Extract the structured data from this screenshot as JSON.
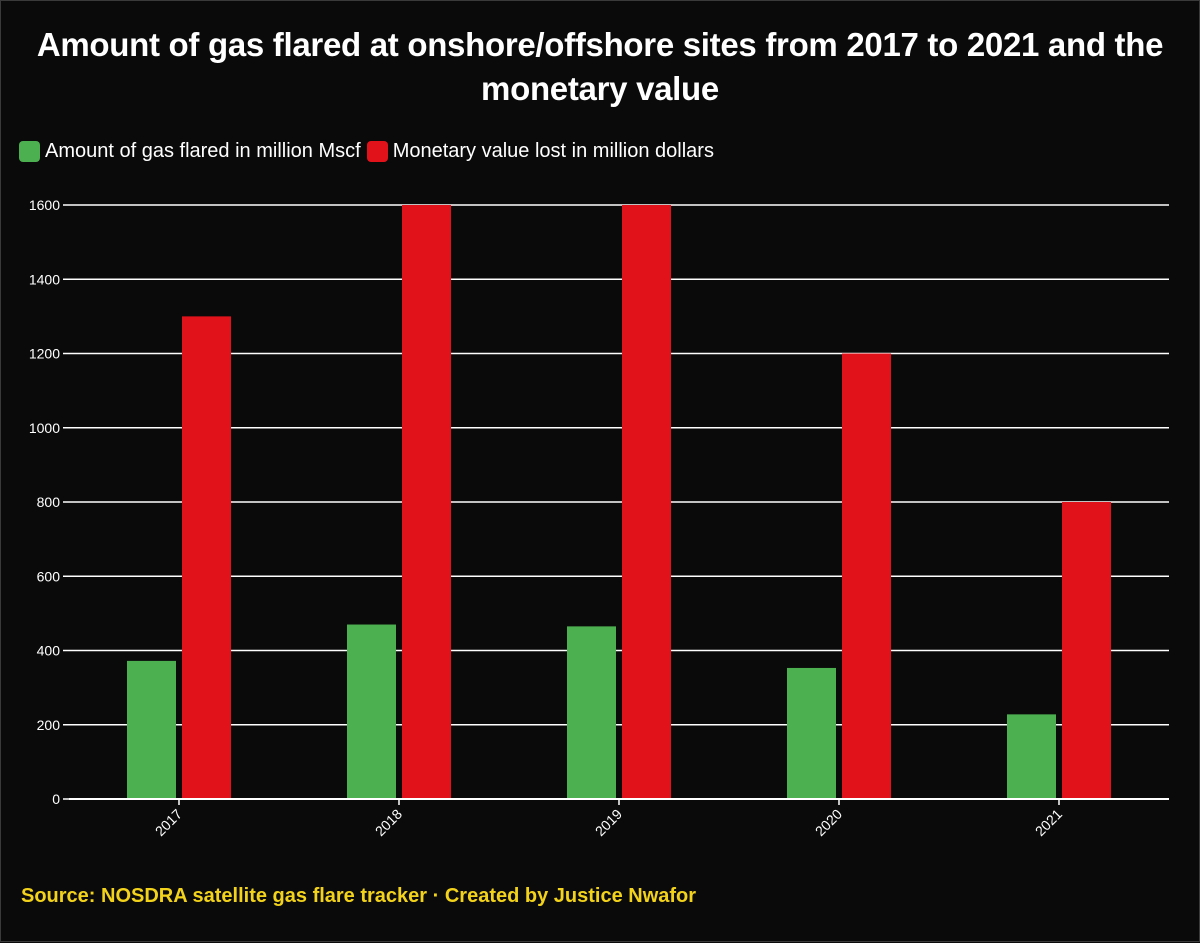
{
  "title": "Amount of gas flared at onshore/offshore sites from 2017 to 2021 and the monetary value",
  "legend": {
    "green_label": "Amount of gas flared in million Mscf",
    "red_label": "Monetary value lost in million dollars"
  },
  "source": "Source: NOSDRA satellite gas flare tracker · Created by Justice Nwafor",
  "colors": {
    "background": "#0a0a0a",
    "green": "#4caf50",
    "red": "#e1121a",
    "grid": "#ffffff",
    "source_text": "#f2d21a"
  },
  "chart_data": {
    "type": "bar",
    "title": "Amount of gas flared at onshore/offshore sites from 2017 to 2021 and the monetary value",
    "xlabel": "",
    "ylabel": "",
    "categories": [
      "2017",
      "2018",
      "2019",
      "2020",
      "2021"
    ],
    "series": [
      {
        "name": "Amount of gas flared in million Mscf",
        "color": "#4caf50",
        "values": [
          372,
          470,
          465,
          353,
          228
        ]
      },
      {
        "name": "Monetary value lost in million dollars",
        "color": "#e1121a",
        "values": [
          1300,
          1600,
          1600,
          1200,
          800
        ]
      }
    ],
    "ylim": [
      0,
      1600
    ],
    "yticks": [
      0,
      200,
      400,
      600,
      800,
      1000,
      1200,
      1400,
      1600
    ],
    "grid": true,
    "legend_position": "top-left"
  }
}
